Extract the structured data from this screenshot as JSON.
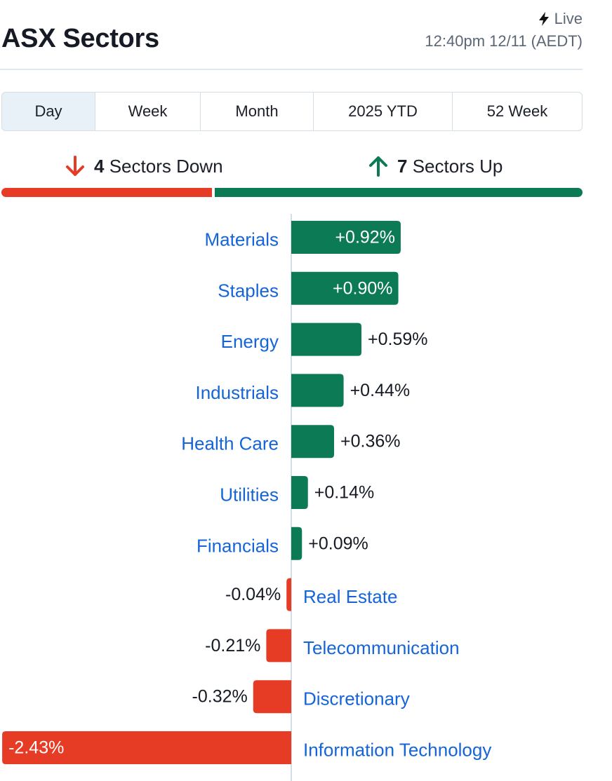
{
  "header": {
    "title": "ASX Sectors",
    "live_label": "Live",
    "timestamp": "12:40pm 12/11 (AEDT)"
  },
  "tabs": [
    {
      "label": "Day",
      "active": true
    },
    {
      "label": "Week",
      "active": false
    },
    {
      "label": "Month",
      "active": false
    },
    {
      "label": "2025 YTD",
      "active": false
    },
    {
      "label": "52 Week",
      "active": false
    }
  ],
  "summary": {
    "down_count": "4",
    "down_label": "Sectors Down",
    "up_count": "7",
    "up_label": "Sectors Up",
    "down_icon": "arrow-down-icon",
    "up_icon": "arrow-up-icon"
  },
  "colors": {
    "up": "#0b7a55",
    "down": "#e63b25",
    "label": "#1565d8",
    "axis": "#d5dde5"
  },
  "chart_data": {
    "type": "bar",
    "orientation": "horizontal",
    "categories": [
      "Materials",
      "Staples",
      "Energy",
      "Industrials",
      "Health Care",
      "Utilities",
      "Financials",
      "Real Estate",
      "Telecommunication",
      "Discretionary",
      "Information Technology"
    ],
    "values": [
      0.92,
      0.9,
      0.59,
      0.44,
      0.36,
      0.14,
      0.09,
      -0.04,
      -0.21,
      -0.32,
      -2.43
    ],
    "value_labels": [
      "+0.92%",
      "+0.90%",
      "+0.59%",
      "+0.44%",
      "+0.36%",
      "+0.14%",
      "+0.09%",
      "-0.04%",
      "-0.21%",
      "-0.32%",
      "-2.43%"
    ],
    "unit": "%"
  }
}
